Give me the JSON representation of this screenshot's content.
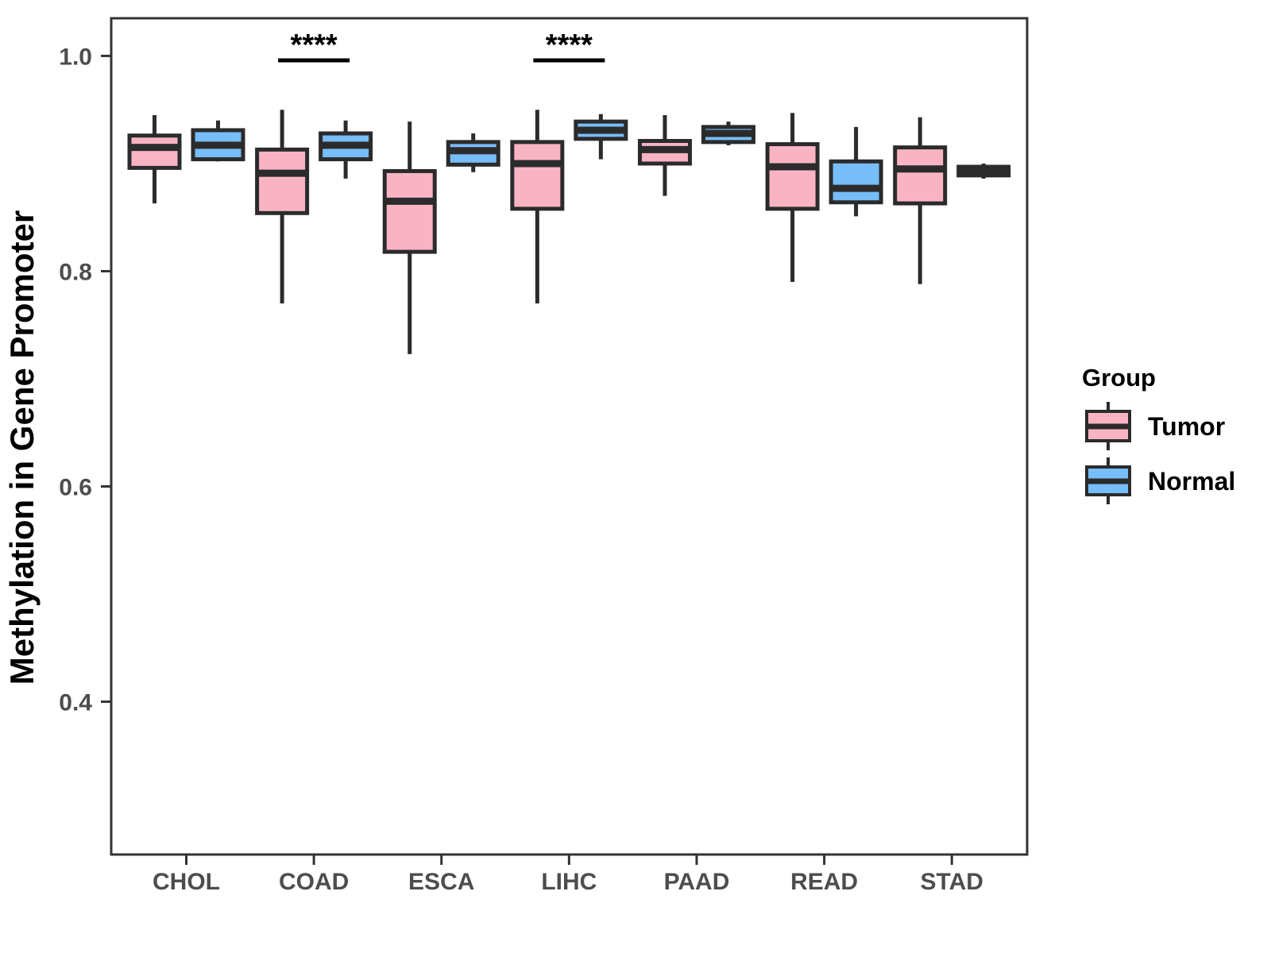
{
  "figure": {
    "background": "#FFFFFF"
  },
  "chart_data": {
    "type": "boxplot",
    "title": "",
    "xlabel": "",
    "ylabel": "Methylation in Gene Promoter",
    "categories": [
      "CHOL",
      "COAD",
      "ESCA",
      "LIHC",
      "PAAD",
      "READ",
      "STAD"
    ],
    "y_ticks": [
      {
        "label": "1.0",
        "value": 1.0
      },
      {
        "label": "0.8",
        "value": 0.8
      },
      {
        "label": "0.6",
        "value": 0.6
      },
      {
        "label": "0.4",
        "value": 0.4
      }
    ],
    "ylim": [
      0.258,
      1.035
    ],
    "grid": "off",
    "colors": {
      "box_border": "#2B2B2B",
      "panel_border": "#333333",
      "tick_label": "#4D4D4D",
      "axis_title": "#000000",
      "annotation": "#000000"
    },
    "legend": {
      "title": "Group",
      "position": "right",
      "entries": [
        {
          "label": "Tumor",
          "color": "#F9B4C4"
        },
        {
          "label": "Normal",
          "color": "#77BDF7"
        }
      ]
    },
    "series": [
      {
        "name": "Tumor",
        "color": "#F9B4C4",
        "boxes": [
          {
            "category": "CHOL",
            "whisker_low": 0.863,
            "q1": 0.896,
            "median": 0.915,
            "q3": 0.926,
            "whisker_high": 0.945
          },
          {
            "category": "COAD",
            "whisker_low": 0.77,
            "q1": 0.854,
            "median": 0.891,
            "q3": 0.913,
            "whisker_high": 0.95
          },
          {
            "category": "ESCA",
            "whisker_low": 0.723,
            "q1": 0.818,
            "median": 0.865,
            "q3": 0.893,
            "whisker_high": 0.939
          },
          {
            "category": "LIHC",
            "whisker_low": 0.77,
            "q1": 0.858,
            "median": 0.9,
            "q3": 0.92,
            "whisker_high": 0.95
          },
          {
            "category": "PAAD",
            "whisker_low": 0.87,
            "q1": 0.9,
            "median": 0.913,
            "q3": 0.921,
            "whisker_high": 0.945
          },
          {
            "category": "READ",
            "whisker_low": 0.79,
            "q1": 0.858,
            "median": 0.897,
            "q3": 0.918,
            "whisker_high": 0.947
          },
          {
            "category": "STAD",
            "whisker_low": 0.788,
            "q1": 0.863,
            "median": 0.895,
            "q3": 0.915,
            "whisker_high": 0.943
          }
        ]
      },
      {
        "name": "Normal",
        "color": "#77BDF7",
        "boxes": [
          {
            "category": "CHOL",
            "whisker_low": 0.902,
            "q1": 0.904,
            "median": 0.917,
            "q3": 0.931,
            "whisker_high": 0.94
          },
          {
            "category": "COAD",
            "whisker_low": 0.886,
            "q1": 0.904,
            "median": 0.917,
            "q3": 0.928,
            "whisker_high": 0.94
          },
          {
            "category": "ESCA",
            "whisker_low": 0.892,
            "q1": 0.899,
            "median": 0.912,
            "q3": 0.92,
            "whisker_high": 0.928
          },
          {
            "category": "LIHC",
            "whisker_low": 0.904,
            "q1": 0.923,
            "median": 0.931,
            "q3": 0.939,
            "whisker_high": 0.946
          },
          {
            "category": "PAAD",
            "whisker_low": 0.917,
            "q1": 0.92,
            "median": 0.928,
            "q3": 0.934,
            "whisker_high": 0.939
          },
          {
            "category": "READ",
            "whisker_low": 0.851,
            "q1": 0.864,
            "median": 0.877,
            "q3": 0.902,
            "whisker_high": 0.934
          },
          {
            "category": "STAD",
            "whisker_low": 0.886,
            "q1": 0.889,
            "median": 0.894,
            "q3": 0.897,
            "whisker_high": 0.9
          }
        ]
      }
    ],
    "annotations": [
      {
        "category": "COAD",
        "label": "****"
      },
      {
        "category": "LIHC",
        "label": "****"
      }
    ]
  }
}
